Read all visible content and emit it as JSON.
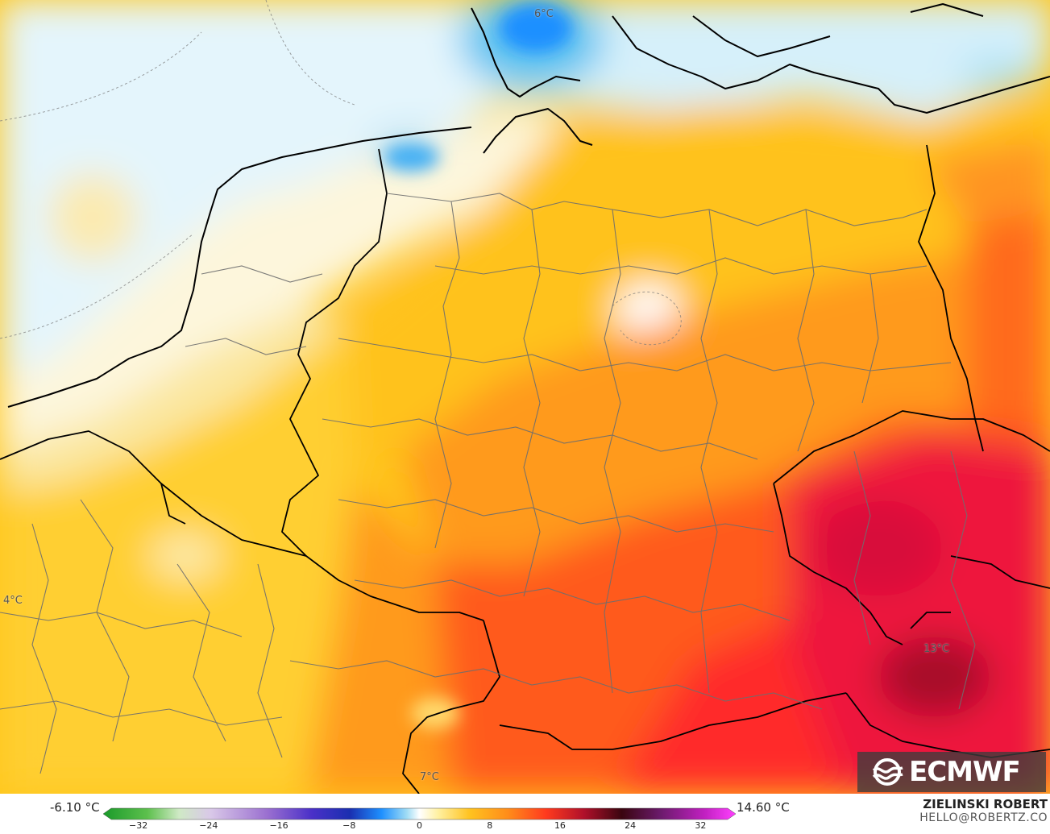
{
  "map": {
    "labels": [
      {
        "text": "6°C"
      },
      {
        "text": "4°C"
      },
      {
        "text": "13°C"
      },
      {
        "text": "7°C"
      }
    ]
  },
  "logo": {
    "text": "ECMWF"
  },
  "legend": {
    "min_label": "-6.10 °C",
    "max_label": "14.60 °C",
    "ticks": [
      "−32",
      "−24",
      "−16",
      "−8",
      "0",
      "8",
      "16",
      "24",
      "32"
    ],
    "range": [
      -36,
      36
    ]
  },
  "credit": {
    "author": "ZIELINSKI ROBERT",
    "email": "HELLO@ROBERTZ.CO"
  },
  "colors": {
    "cold": "#1e90ff",
    "cool": "#bfe9f7",
    "neutral": "#ffffff",
    "mild": "#ffd23a",
    "warm": "#ff8c1a",
    "hot": "#e8143c"
  }
}
